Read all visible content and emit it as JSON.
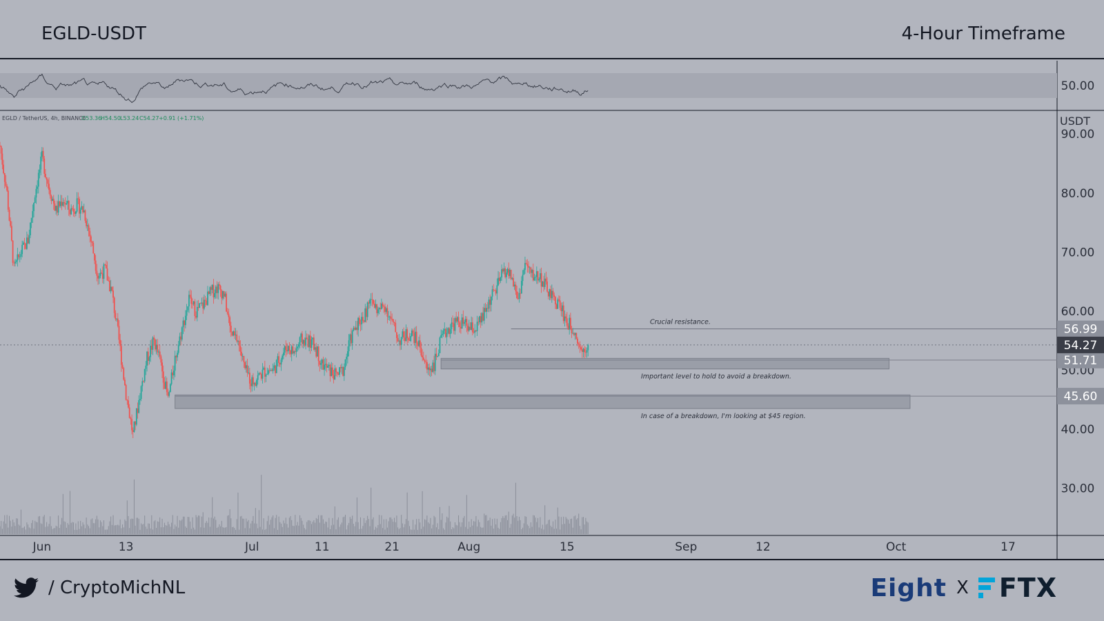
{
  "header": {
    "pair": "EGLD-USDT",
    "timeframe": "4-Hour Timeframe"
  },
  "footer": {
    "handle": "/ CryptoMichNL",
    "brand_primary": "Eight",
    "brand_separator": "X",
    "brand_secondary": "FTX"
  },
  "colors": {
    "background": "#b2b5be",
    "up": "#26a69a",
    "down": "#ef5350",
    "zone": "#9a9ea8",
    "ink": "#131722"
  },
  "icons": {
    "social": "twitter-bird-icon",
    "exchange": "ftx-logo-icon"
  },
  "chart_data": {
    "type": "candlestick",
    "symbol_line": "EGLD / TetherUS, 4h, BINANCE",
    "ohlc": {
      "o": "O53.36",
      "h": "H54.50",
      "l": "L53.24",
      "c": "C54.27",
      "chg": "+0.91 (+1.71%)"
    },
    "currency_label": "USDT",
    "y_ticks": [
      "90.00",
      "80.00",
      "70.00",
      "60.00",
      "50.00",
      "40.00",
      "30.00"
    ],
    "ylim": [
      22,
      94
    ],
    "x_ticks": [
      {
        "label": "Jun",
        "date": "2022-06-01"
      },
      {
        "label": "13",
        "date": "2022-06-13"
      },
      {
        "label": "Jul",
        "date": "2022-07-01"
      },
      {
        "label": "11",
        "date": "2022-07-11"
      },
      {
        "label": "21",
        "date": "2022-07-21"
      },
      {
        "label": "Aug",
        "date": "2022-08-01"
      },
      {
        "label": "15",
        "date": "2022-08-15"
      },
      {
        "label": "Sep",
        "date": "2022-09-01"
      },
      {
        "label": "12",
        "date": "2022-09-12"
      },
      {
        "label": "Oct",
        "date": "2022-10-01"
      },
      {
        "label": "17",
        "date": "2022-10-17"
      }
    ],
    "xlim": [
      "2022-05-26",
      "2022-10-24"
    ],
    "price_path": [
      [
        "2022-05-26",
        88
      ],
      [
        "2022-05-27",
        80
      ],
      [
        "2022-05-28",
        67
      ],
      [
        "2022-05-29",
        70
      ],
      [
        "2022-05-30",
        72
      ],
      [
        "2022-05-31",
        80
      ],
      [
        "2022-06-01",
        86
      ],
      [
        "2022-06-02",
        81
      ],
      [
        "2022-06-03",
        77
      ],
      [
        "2022-06-04",
        79
      ],
      [
        "2022-06-05",
        77
      ],
      [
        "2022-06-06",
        78
      ],
      [
        "2022-06-07",
        77
      ],
      [
        "2022-06-08",
        72
      ],
      [
        "2022-06-09",
        66
      ],
      [
        "2022-06-10",
        67
      ],
      [
        "2022-06-11",
        63
      ],
      [
        "2022-06-12",
        55
      ],
      [
        "2022-06-13",
        46
      ],
      [
        "2022-06-14",
        39
      ],
      [
        "2022-06-15",
        46
      ],
      [
        "2022-06-16",
        52
      ],
      [
        "2022-06-17",
        55
      ],
      [
        "2022-06-18",
        51
      ],
      [
        "2022-06-19",
        45
      ],
      [
        "2022-06-20",
        52
      ],
      [
        "2022-06-21",
        57
      ],
      [
        "2022-06-22",
        62
      ],
      [
        "2022-06-23",
        60
      ],
      [
        "2022-06-24",
        61
      ],
      [
        "2022-06-25",
        63
      ],
      [
        "2022-06-26",
        64
      ],
      [
        "2022-06-27",
        63
      ],
      [
        "2022-06-28",
        56
      ],
      [
        "2022-06-29",
        55
      ],
      [
        "2022-06-30",
        50
      ],
      [
        "2022-07-01",
        48
      ],
      [
        "2022-07-02",
        49
      ],
      [
        "2022-07-03",
        50
      ],
      [
        "2022-07-04",
        50
      ],
      [
        "2022-07-05",
        52
      ],
      [
        "2022-07-06",
        54
      ],
      [
        "2022-07-07",
        53
      ],
      [
        "2022-07-08",
        55
      ],
      [
        "2022-07-09",
        55
      ],
      [
        "2022-07-10",
        54
      ],
      [
        "2022-07-11",
        51
      ],
      [
        "2022-07-12",
        50
      ],
      [
        "2022-07-13",
        49
      ],
      [
        "2022-07-14",
        50
      ],
      [
        "2022-07-15",
        55
      ],
      [
        "2022-07-16",
        58
      ],
      [
        "2022-07-17",
        59
      ],
      [
        "2022-07-18",
        62
      ],
      [
        "2022-07-19",
        60
      ],
      [
        "2022-07-20",
        61
      ],
      [
        "2022-07-21",
        58
      ],
      [
        "2022-07-22",
        55
      ],
      [
        "2022-07-23",
        56
      ],
      [
        "2022-07-24",
        56
      ],
      [
        "2022-07-25",
        54
      ],
      [
        "2022-07-26",
        50
      ],
      [
        "2022-07-27",
        51
      ],
      [
        "2022-07-28",
        55
      ],
      [
        "2022-07-29",
        57
      ],
      [
        "2022-07-30",
        58
      ],
      [
        "2022-07-31",
        58
      ],
      [
        "2022-08-01",
        57
      ],
      [
        "2022-08-02",
        57
      ],
      [
        "2022-08-03",
        59
      ],
      [
        "2022-08-04",
        62
      ],
      [
        "2022-08-05",
        64
      ],
      [
        "2022-08-06",
        67
      ],
      [
        "2022-08-07",
        66
      ],
      [
        "2022-08-08",
        62
      ],
      [
        "2022-08-09",
        68
      ],
      [
        "2022-08-10",
        66
      ],
      [
        "2022-08-11",
        66
      ],
      [
        "2022-08-12",
        64
      ],
      [
        "2022-08-13",
        62
      ],
      [
        "2022-08-14",
        61
      ],
      [
        "2022-08-15",
        58
      ],
      [
        "2022-08-16",
        57
      ],
      [
        "2022-08-17",
        53.36
      ],
      [
        "2022-08-18",
        54.27
      ]
    ],
    "levels": [
      {
        "price": "56.99",
        "value": 56.99,
        "label": "Crucial resistance.",
        "start": "2022-08-07",
        "end": "2022-10-24",
        "kind": "line"
      },
      {
        "price": "51.71",
        "value": 51.71,
        "zone": [
          50.2,
          52.0
        ],
        "label": "Important level to hold to avoid a breakdown.",
        "start": "2022-07-28",
        "end": "2022-09-30",
        "kind": "zone"
      },
      {
        "price": "45.60",
        "value": 45.6,
        "zone": [
          43.5,
          45.8
        ],
        "label": "In case of a breakdown, I'm looking at $45 region.",
        "start": "2022-06-20",
        "end": "2022-10-03",
        "kind": "zone"
      }
    ],
    "last_price": "54.27",
    "last_value": 54.27,
    "rsi": {
      "label": "50.00",
      "value": 50,
      "band": [
        40,
        60
      ],
      "ylim": [
        30,
        70
      ]
    }
  }
}
